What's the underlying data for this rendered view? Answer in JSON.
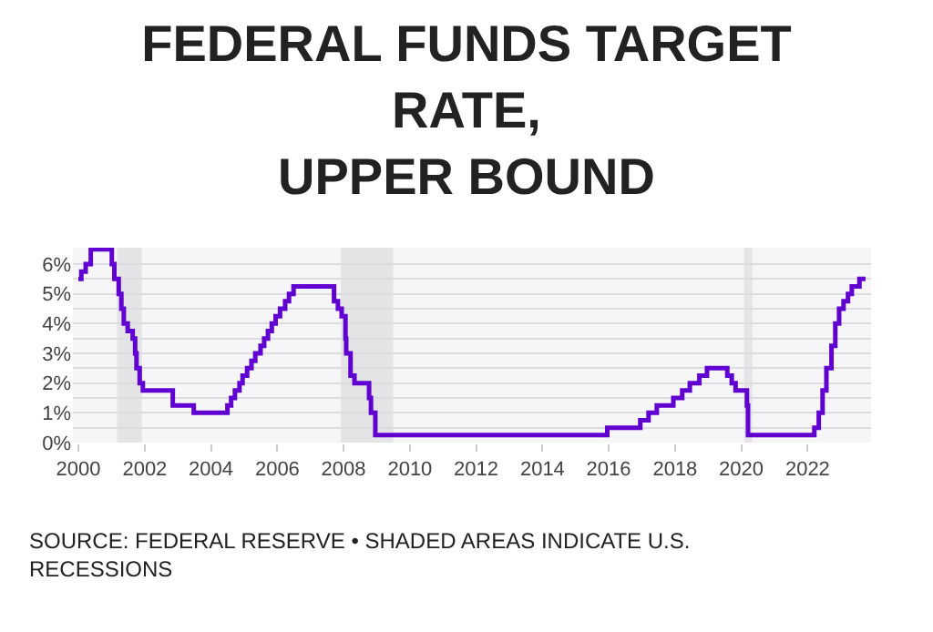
{
  "chart_data": {
    "type": "step",
    "title": "FEDERAL FUNDS TARGET\nRATE,\nUPPER BOUND",
    "annotations": [
      "SOURCE: FEDERAL RESERVE • SHADED AREAS INDICATE U.S.\nRECESSIONS"
    ],
    "x": [
      "2000-01-01",
      "2000-02-02",
      "2000-03-21",
      "2000-05-16",
      "2001-01-03",
      "2001-01-31",
      "2001-03-20",
      "2001-04-18",
      "2001-05-15",
      "2001-06-27",
      "2001-08-21",
      "2001-09-17",
      "2001-10-02",
      "2001-11-06",
      "2001-12-11",
      "2002-11-06",
      "2003-06-25",
      "2004-06-30",
      "2004-08-10",
      "2004-09-21",
      "2004-11-10",
      "2004-12-14",
      "2005-02-02",
      "2005-03-22",
      "2005-05-03",
      "2005-06-30",
      "2005-08-09",
      "2005-09-20",
      "2005-11-01",
      "2005-12-13",
      "2006-01-31",
      "2006-03-28",
      "2006-05-10",
      "2006-06-29",
      "2007-09-18",
      "2007-10-31",
      "2007-12-11",
      "2008-01-22",
      "2008-01-30",
      "2008-03-18",
      "2008-04-30",
      "2008-10-08",
      "2008-10-29",
      "2008-12-16",
      "2015-12-16",
      "2016-12-14",
      "2017-03-15",
      "2017-06-14",
      "2017-12-13",
      "2018-03-21",
      "2018-06-13",
      "2018-09-26",
      "2018-12-19",
      "2019-07-31",
      "2019-09-18",
      "2019-10-30",
      "2020-03-03",
      "2020-03-15",
      "2022-03-16",
      "2022-05-04",
      "2022-06-15",
      "2022-07-27",
      "2022-09-21",
      "2022-11-02",
      "2022-12-14",
      "2023-02-01",
      "2023-03-22",
      "2023-05-03",
      "2023-07-26",
      "2023-10-01"
    ],
    "series": [
      {
        "color": "#6001d2",
        "values": [
          5.5,
          5.75,
          6.0,
          6.5,
          6.0,
          5.5,
          5.0,
          4.5,
          4.0,
          3.75,
          3.5,
          3.0,
          2.5,
          2.0,
          1.75,
          1.25,
          1.0,
          1.25,
          1.5,
          1.75,
          2.0,
          2.25,
          2.5,
          2.75,
          3.0,
          3.25,
          3.5,
          3.75,
          4.0,
          4.25,
          4.5,
          4.75,
          5.0,
          5.25,
          4.75,
          4.5,
          4.25,
          3.5,
          3.0,
          2.25,
          2.0,
          1.5,
          1.0,
          0.25,
          0.5,
          0.75,
          1.0,
          1.25,
          1.5,
          1.75,
          2.0,
          2.25,
          2.5,
          2.25,
          2.0,
          1.75,
          1.25,
          0.25,
          0.5,
          1.0,
          1.75,
          2.5,
          3.25,
          4.0,
          4.5,
          4.75,
          5.0,
          5.25,
          5.5,
          5.5
        ]
      }
    ],
    "bands": [
      {
        "axis": "x",
        "from": "2001-03-01",
        "to": "2001-11-30",
        "label": null,
        "color": "#e4e4e6"
      },
      {
        "axis": "x",
        "from": "2007-12-01",
        "to": "2009-06-30",
        "label": null,
        "color": "#e4e4e6"
      },
      {
        "axis": "x",
        "from": "2020-02-01",
        "to": "2020-04-30",
        "label": null,
        "color": "#e4e4e6"
      }
    ],
    "xlim": [
      "1999-11-01",
      "2023-12-01"
    ],
    "xticks": [
      "2000",
      "2002",
      "2004",
      "2006",
      "2008",
      "2010",
      "2012",
      "2014",
      "2016",
      "2018",
      "2020",
      "2022"
    ],
    "ylim": [
      0,
      6.55
    ],
    "yticks": [
      {
        "value": 0,
        "label": "0%"
      },
      {
        "value": 0.5,
        "label": null
      },
      {
        "value": 1,
        "label": "1%"
      },
      {
        "value": 1.5,
        "label": null
      },
      {
        "value": 2,
        "label": "2%"
      },
      {
        "value": 2.5,
        "label": null
      },
      {
        "value": 3,
        "label": "3%"
      },
      {
        "value": 3.5,
        "label": null
      },
      {
        "value": 4,
        "label": "4%"
      },
      {
        "value": 4.5,
        "label": null
      },
      {
        "value": 5,
        "label": "5%"
      },
      {
        "value": 5.5,
        "label": null
      },
      {
        "value": 6,
        "label": "6%"
      }
    ],
    "grid": "y"
  }
}
